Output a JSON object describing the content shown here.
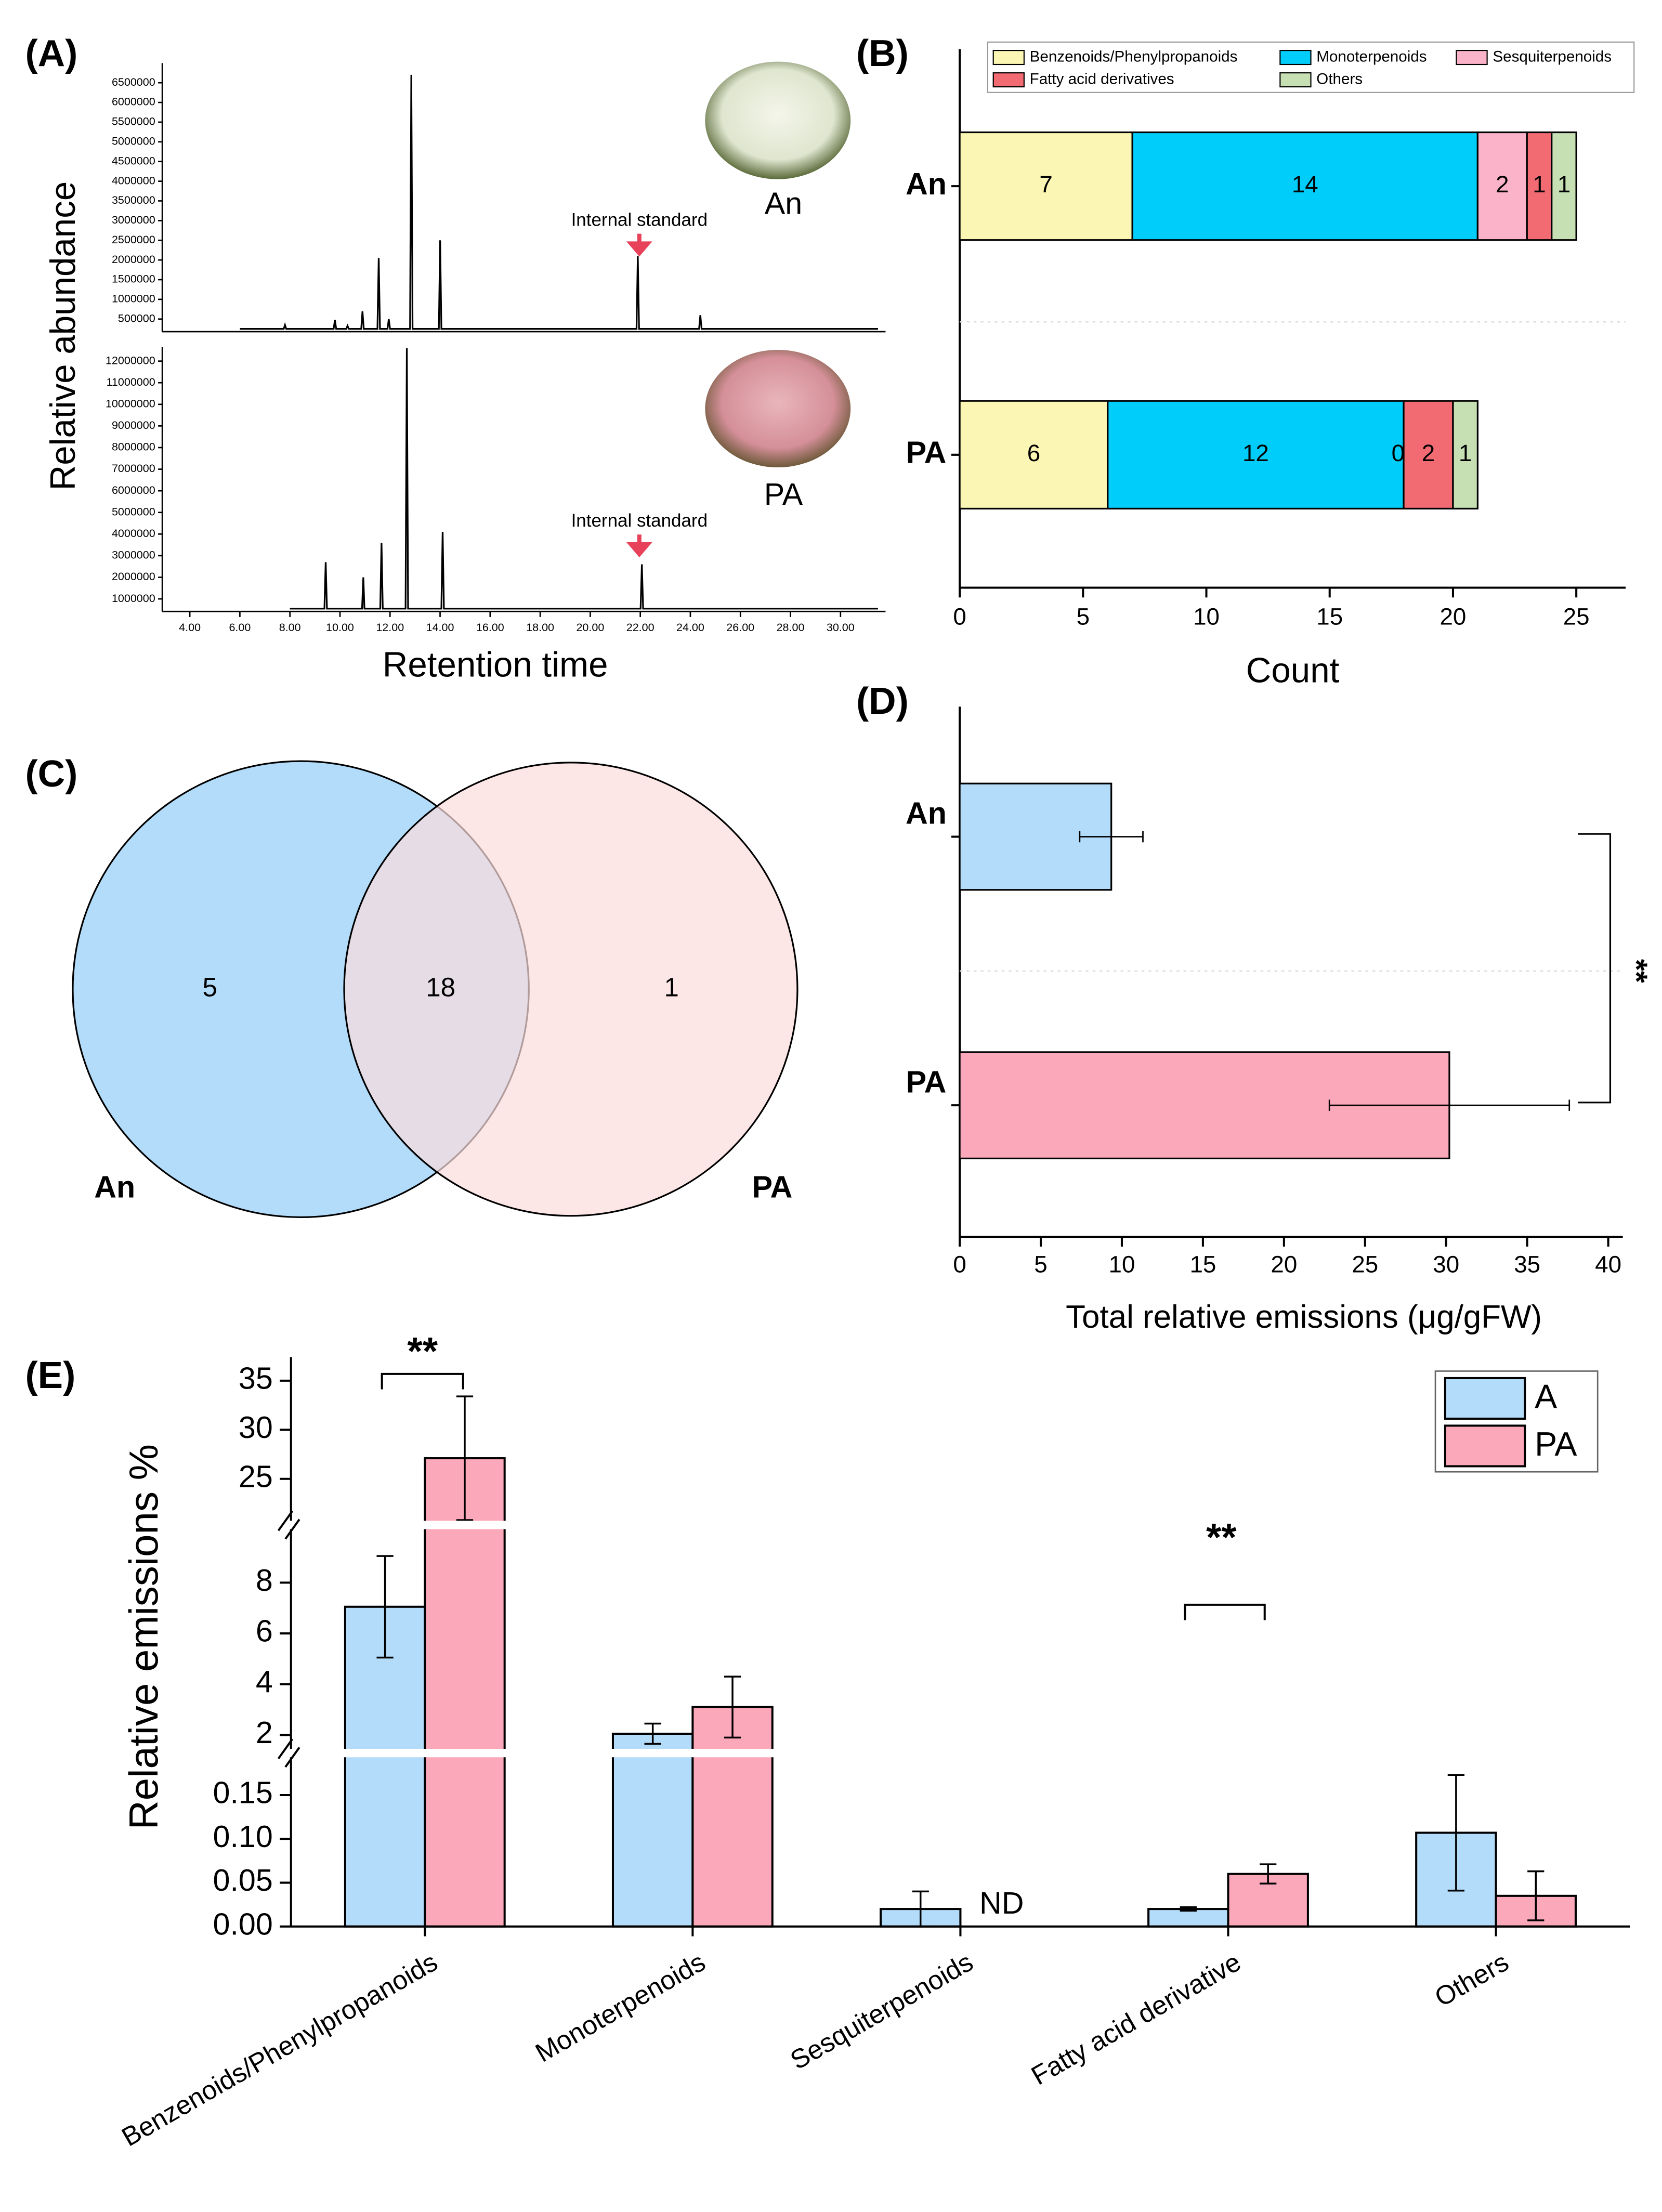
{
  "chart_data": [
    {
      "panel": "(A)",
      "type": "line",
      "sample": "An",
      "annotation": "Internal standard",
      "ylabel": "Relative abundance",
      "color": "#000000",
      "x": [
        6.0,
        7.75,
        7.8,
        7.85,
        9.75,
        9.8,
        9.85,
        10.25,
        10.3,
        10.35,
        10.85,
        10.9,
        10.95,
        11.5,
        11.55,
        11.6,
        11.9,
        11.95,
        12.0,
        12.8,
        12.85,
        12.9,
        13.95,
        14.0,
        14.05,
        21.85,
        21.9,
        21.95,
        24.35,
        24.4,
        24.45,
        31.5
      ],
      "values": [
        250000,
        250000,
        350000,
        250000,
        250000,
        480000,
        250000,
        250000,
        330000,
        250000,
        250000,
        700000,
        250000,
        250000,
        2050000,
        250000,
        250000,
        500000,
        250000,
        250000,
        6700000,
        250000,
        250000,
        2500000,
        250000,
        250000,
        2100000,
        250000,
        250000,
        600000,
        250000,
        250000
      ],
      "xlim": [
        2.9,
        31.8
      ],
      "ylim": [
        180000,
        7000000
      ],
      "yticks": [
        500000,
        1000000,
        1500000,
        2000000,
        2500000,
        3000000,
        3500000,
        4000000,
        4500000,
        5000000,
        5500000,
        6000000,
        6500000
      ]
    },
    {
      "type": "line",
      "sample": "PA",
      "annotation": "Internal standard",
      "xlabel": "Retention time",
      "color": "#000000",
      "x": [
        8.0,
        9.38,
        9.43,
        9.48,
        10.88,
        10.93,
        10.98,
        11.61,
        11.66,
        11.71,
        12.62,
        12.67,
        12.72,
        14.05,
        14.1,
        14.15,
        22.01,
        22.06,
        22.11,
        31.5
      ],
      "values": [
        550000,
        550000,
        2700000,
        550000,
        550000,
        2000000,
        550000,
        550000,
        3600000,
        550000,
        550000,
        12600000,
        550000,
        550000,
        4100000,
        550000,
        550000,
        2600000,
        550000,
        550000
      ],
      "xlim": [
        2.9,
        31.8
      ],
      "ylim": [
        420000,
        12650000
      ],
      "yticks": [
        1000000,
        2000000,
        3000000,
        4000000,
        5000000,
        6000000,
        7000000,
        8000000,
        9000000,
        10000000,
        11000000,
        12000000
      ],
      "xticks": [
        {
          "value": 4,
          "label": "4.00"
        },
        {
          "value": 6,
          "label": "6.00"
        },
        {
          "value": 8,
          "label": "8.00"
        },
        {
          "value": 10,
          "label": "10.00"
        },
        {
          "value": 12,
          "label": "12.00"
        },
        {
          "value": 14,
          "label": "14.00"
        },
        {
          "value": 16,
          "label": "16.00"
        },
        {
          "value": 18,
          "label": "18.00"
        },
        {
          "value": 20,
          "label": "20.00"
        },
        {
          "value": 22,
          "label": "22.00"
        },
        {
          "value": 24,
          "label": "24.00"
        },
        {
          "value": 26,
          "label": "26.00"
        },
        {
          "value": 28,
          "label": "28.00"
        },
        {
          "value": 30,
          "label": "30.00"
        }
      ]
    },
    {
      "panel": "(B)",
      "type": "stacked_hbar",
      "categories": [
        "An",
        "PA"
      ],
      "xlabel": "Count",
      "series": [
        {
          "name": "Benzenoids/Phenylpropanoids",
          "color": "#fbf6b3",
          "values": [
            7,
            6
          ]
        },
        {
          "name": "Monoterpenoids",
          "color": "#00cdfa",
          "values": [
            14,
            12
          ]
        },
        {
          "name": "Sesquiterpenoids",
          "color": "#fbb3c9",
          "values": [
            2,
            0
          ]
        },
        {
          "name": "Fatty acid derivatives",
          "color": "#f26b73",
          "values": [
            1,
            2
          ]
        },
        {
          "name": "Others",
          "color": "#c6e0b4",
          "values": [
            1,
            1
          ]
        }
      ],
      "xlim": [
        0,
        27
      ],
      "xticks": [
        0,
        5,
        10,
        15,
        20,
        25
      ]
    },
    {
      "panel": "(C)",
      "type": "venn",
      "sets": [
        "An",
        "PA"
      ],
      "values": [
        5,
        18,
        1
      ],
      "colors": [
        "#b3dcfa",
        "#fbdcdc"
      ]
    },
    {
      "panel": "(D)",
      "type": "hbar",
      "categories": [
        "An",
        "PA"
      ],
      "values": [
        9.35,
        30.2
      ],
      "errors": [
        1.95,
        7.4
      ],
      "colors": [
        "#b3dcfa",
        "#fba8ba"
      ],
      "xlabel": "Total relative emissions (μg/gFW)",
      "annotation": "**",
      "xlim": [
        0,
        40.9
      ],
      "xticks": [
        0,
        5,
        10,
        15,
        20,
        25,
        30,
        35,
        40
      ]
    },
    {
      "panel": "(E)",
      "type": "grouped_bar_broken",
      "categories": [
        "Benzenoids/Phenylpropanoids",
        "Monoterpenoids",
        "Sesquiterpenoids",
        "Fatty acid derivative",
        "Others"
      ],
      "ylabel": "Relative emissions %",
      "series": [
        {
          "name": "A",
          "color": "#b3dcfa",
          "values": [
            7.05,
            2.05,
            0.02,
            0.02,
            0.107
          ],
          "errors": [
            2.0,
            0.4,
            0.02,
            0.002,
            0.066
          ]
        },
        {
          "name": "PA",
          "color": "#fba8ba",
          "values": [
            27.1,
            3.1,
            null,
            0.06,
            0.035
          ],
          "errors": [
            6.3,
            1.2,
            null,
            0.011,
            0.028
          ]
        }
      ],
      "annotations": [
        "**",
        "ND",
        "**"
      ],
      "y_segments": [
        {
          "ylim": [
            0,
            0.198
          ],
          "yticks": [
            {
              "value": 0,
              "label": "0.00"
            },
            {
              "value": 0.05,
              "label": "0.05"
            },
            {
              "value": 0.1,
              "label": "0.10"
            },
            {
              "value": 0.15,
              "label": "0.15"
            }
          ]
        },
        {
          "ylim": [
            1.29,
            10.27
          ],
          "yticks": [
            2,
            4,
            6,
            8
          ]
        },
        {
          "ylim": [
            20.3,
            37.4
          ],
          "yticks": [
            25,
            30,
            35
          ]
        }
      ]
    }
  ]
}
